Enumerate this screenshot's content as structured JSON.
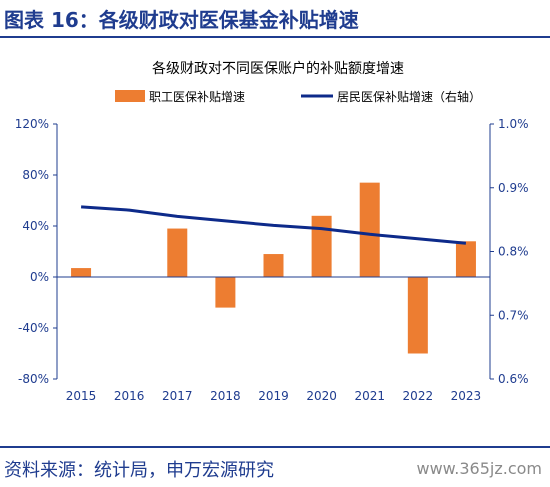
{
  "header": {
    "title": "图表 16：各级财政对医保基金补贴增速"
  },
  "footer": {
    "source": "资料来源：统计局，申万宏源研究",
    "watermark": "www.365jz.com"
  },
  "colors": {
    "accent": "#1f3c8f",
    "bar": "#ed7d31",
    "line": "#0d2a8a",
    "axis_text": "#1f3c8f"
  },
  "chart_data": {
    "type": "bar",
    "title": "各级财政对不同医保账户的补贴额度增速",
    "categories": [
      "2015",
      "2016",
      "2017",
      "2018",
      "2019",
      "2020",
      "2021",
      "2022",
      "2023"
    ],
    "series": [
      {
        "name": "职工医保补贴增速",
        "type": "bar",
        "axis": "left",
        "values": [
          7,
          0,
          38,
          -24,
          18,
          48,
          74,
          -60,
          28
        ]
      },
      {
        "name": "居民医保补贴增速（右轴）",
        "type": "line",
        "axis": "right",
        "values": [
          0.87,
          0.865,
          0.855,
          0.848,
          0.841,
          0.836,
          0.827,
          0.82,
          0.813
        ]
      }
    ],
    "left_axis": {
      "ylim": [
        -80,
        120
      ],
      "ticks": [
        "-80%",
        "-40%",
        "0%",
        "40%",
        "80%",
        "120%"
      ]
    },
    "right_axis": {
      "ylim": [
        0.6,
        1.0
      ],
      "ticks": [
        "0.6%",
        "0.7%",
        "0.8%",
        "0.9%",
        "1.0%"
      ]
    },
    "legend_position": "top",
    "grid": false
  }
}
